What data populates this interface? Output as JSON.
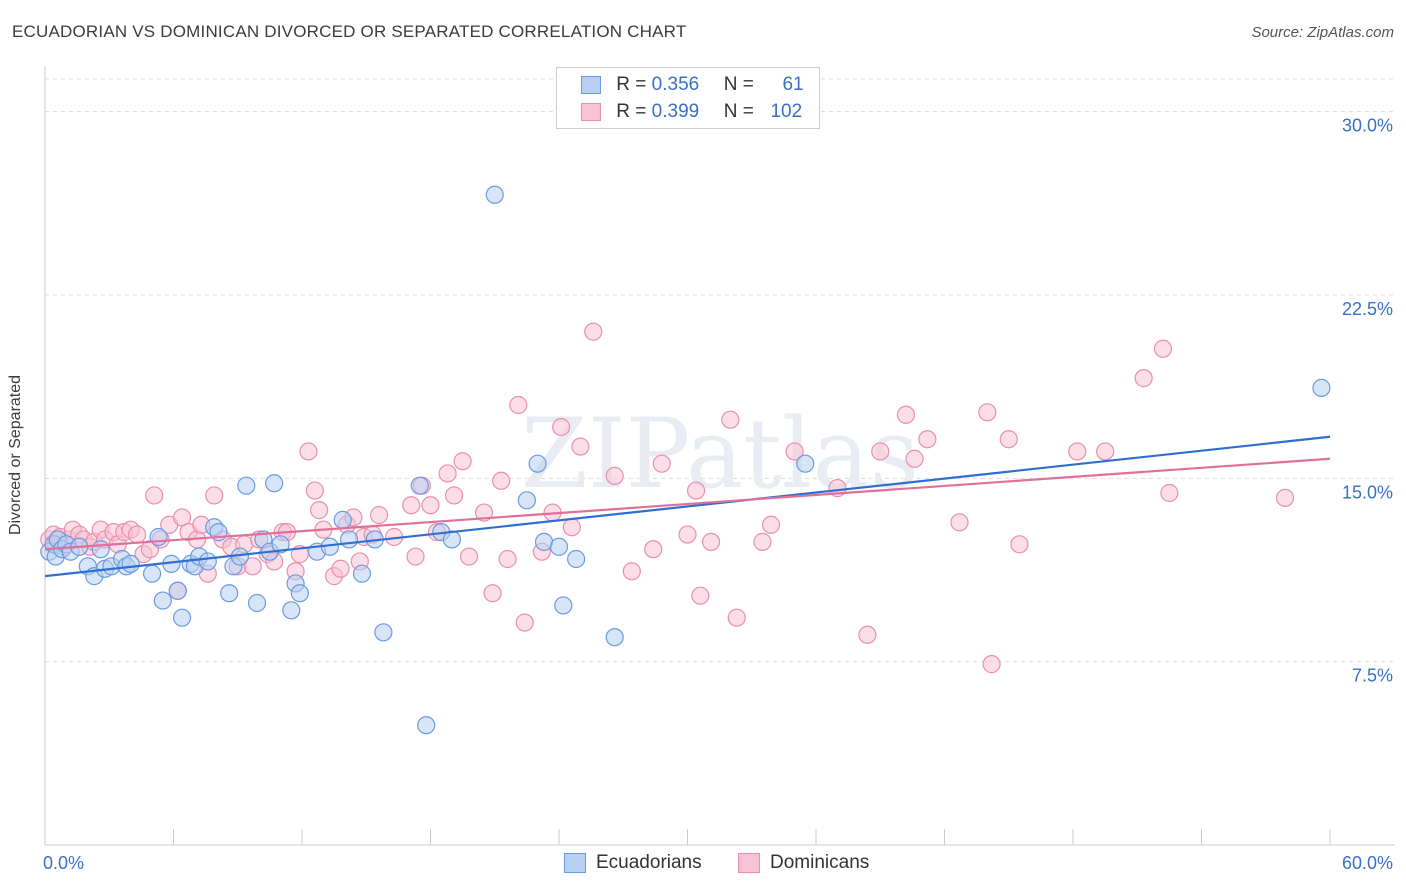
{
  "title": "ECUADORIAN VS DOMINICAN DIVORCED OR SEPARATED CORRELATION CHART",
  "source": "Source: ZipAtlas.com",
  "watermark": "ZIPatlas",
  "legend": {
    "rows": [
      {
        "r_label": "R =",
        "r_value": "0.356",
        "n_label": "N =",
        "n_value": "61"
      },
      {
        "r_label": "R =",
        "r_value": "0.399",
        "n_label": "N =",
        "n_value": "102"
      }
    ]
  },
  "colors": {
    "ecuadorians_fill": "#b8d0f2",
    "ecuadorians_stroke": "#6b9be0",
    "ecuadorians_line": "#2f6fd1",
    "dominicans_fill": "#f7c3d3",
    "dominicans_stroke": "#ea8faf",
    "dominicans_line": "#e0709a",
    "tick_label": "#3a70c6",
    "grid": "#dcdcdc"
  },
  "chart_data": {
    "type": "scatter",
    "title": "ECUADORIAN VS DOMINICAN DIVORCED OR SEPARATED CORRELATION CHART",
    "xlabel": "",
    "ylabel": "Divorced or Separated",
    "xlim": [
      0,
      60
    ],
    "ylim": [
      0,
      31.5
    ],
    "x_tick_labels": [
      {
        "value": 0,
        "label": "0.0%"
      },
      {
        "value": 60,
        "label": "60.0%"
      }
    ],
    "y_ticks": [
      {
        "value": 7.5,
        "label": "7.5%"
      },
      {
        "value": 15,
        "label": "15.0%"
      },
      {
        "value": 22.5,
        "label": "22.5%"
      },
      {
        "value": 30,
        "label": "30.0%"
      }
    ],
    "grid": true,
    "legend_position": "top-center",
    "series": [
      {
        "name": "Ecuadorians",
        "color": "#6b9be0",
        "trend": {
          "x": [
            0,
            60
          ],
          "y": [
            11.0,
            16.7
          ]
        },
        "points": [
          [
            0.2,
            12.0
          ],
          [
            0.4,
            12.3
          ],
          [
            0.5,
            11.8
          ],
          [
            0.6,
            12.5
          ],
          [
            0.8,
            12.1
          ],
          [
            1.0,
            12.3
          ],
          [
            1.2,
            12.0
          ],
          [
            1.6,
            12.2
          ],
          [
            2.0,
            11.4
          ],
          [
            2.3,
            11.0
          ],
          [
            2.6,
            12.1
          ],
          [
            2.8,
            11.3
          ],
          [
            3.1,
            11.4
          ],
          [
            3.6,
            11.7
          ],
          [
            3.8,
            11.4
          ],
          [
            4.0,
            11.5
          ],
          [
            5.0,
            11.1
          ],
          [
            5.3,
            12.6
          ],
          [
            5.5,
            10.0
          ],
          [
            5.9,
            11.5
          ],
          [
            6.2,
            10.4
          ],
          [
            6.4,
            9.3
          ],
          [
            6.8,
            11.5
          ],
          [
            7.0,
            11.4
          ],
          [
            7.2,
            11.8
          ],
          [
            7.6,
            11.6
          ],
          [
            7.9,
            13.0
          ],
          [
            8.1,
            12.8
          ],
          [
            8.6,
            10.3
          ],
          [
            8.8,
            11.4
          ],
          [
            9.1,
            11.8
          ],
          [
            9.4,
            14.7
          ],
          [
            9.9,
            9.9
          ],
          [
            10.2,
            12.5
          ],
          [
            10.5,
            12.0
          ],
          [
            10.7,
            14.8
          ],
          [
            11.0,
            12.3
          ],
          [
            11.5,
            9.6
          ],
          [
            11.7,
            10.7
          ],
          [
            11.9,
            10.3
          ],
          [
            12.7,
            12.0
          ],
          [
            13.3,
            12.2
          ],
          [
            13.9,
            13.3
          ],
          [
            14.2,
            12.5
          ],
          [
            14.8,
            11.1
          ],
          [
            15.4,
            12.5
          ],
          [
            15.8,
            8.7
          ],
          [
            17.5,
            14.7
          ],
          [
            17.8,
            4.9
          ],
          [
            18.5,
            12.8
          ],
          [
            19.0,
            12.5
          ],
          [
            21.0,
            26.6
          ],
          [
            22.5,
            14.1
          ],
          [
            23.0,
            15.6
          ],
          [
            23.3,
            12.4
          ],
          [
            24.0,
            12.2
          ],
          [
            24.2,
            9.8
          ],
          [
            24.8,
            11.7
          ],
          [
            26.6,
            8.5
          ],
          [
            35.5,
            15.6
          ],
          [
            59.6,
            18.7
          ]
        ]
      },
      {
        "name": "Dominicans",
        "color": "#ea8faf",
        "trend": {
          "x": [
            0,
            60
          ],
          "y": [
            12.1,
            15.8
          ]
        },
        "points": [
          [
            0.2,
            12.5
          ],
          [
            0.4,
            12.7
          ],
          [
            0.5,
            12.3
          ],
          [
            0.7,
            12.6
          ],
          [
            0.9,
            12.2
          ],
          [
            1.1,
            12.5
          ],
          [
            1.3,
            12.9
          ],
          [
            1.6,
            12.7
          ],
          [
            1.8,
            12.5
          ],
          [
            2.1,
            12.2
          ],
          [
            2.3,
            12.4
          ],
          [
            2.6,
            12.9
          ],
          [
            2.8,
            12.5
          ],
          [
            3.2,
            12.8
          ],
          [
            3.4,
            12.3
          ],
          [
            3.7,
            12.8
          ],
          [
            4.0,
            12.9
          ],
          [
            4.3,
            12.7
          ],
          [
            4.6,
            11.9
          ],
          [
            4.9,
            12.1
          ],
          [
            5.1,
            14.3
          ],
          [
            5.4,
            12.5
          ],
          [
            5.8,
            13.1
          ],
          [
            6.2,
            10.4
          ],
          [
            6.4,
            13.4
          ],
          [
            6.7,
            12.8
          ],
          [
            7.1,
            12.5
          ],
          [
            7.3,
            13.1
          ],
          [
            7.6,
            11.1
          ],
          [
            7.9,
            14.3
          ],
          [
            8.3,
            12.5
          ],
          [
            8.7,
            12.2
          ],
          [
            9.0,
            11.4
          ],
          [
            9.3,
            12.3
          ],
          [
            9.7,
            11.4
          ],
          [
            10.0,
            12.5
          ],
          [
            10.4,
            11.9
          ],
          [
            10.7,
            11.6
          ],
          [
            11.1,
            12.8
          ],
          [
            11.3,
            12.8
          ],
          [
            11.7,
            11.2
          ],
          [
            11.9,
            11.9
          ],
          [
            12.3,
            16.1
          ],
          [
            12.6,
            14.5
          ],
          [
            12.8,
            13.7
          ],
          [
            13.0,
            12.9
          ],
          [
            13.5,
            11.0
          ],
          [
            13.8,
            11.3
          ],
          [
            14.1,
            13.1
          ],
          [
            14.4,
            13.4
          ],
          [
            14.7,
            11.6
          ],
          [
            14.9,
            12.6
          ],
          [
            15.3,
            12.7
          ],
          [
            15.6,
            13.5
          ],
          [
            16.3,
            12.6
          ],
          [
            17.1,
            13.9
          ],
          [
            17.3,
            11.8
          ],
          [
            17.6,
            14.7
          ],
          [
            18.0,
            13.9
          ],
          [
            18.3,
            12.8
          ],
          [
            18.8,
            15.2
          ],
          [
            19.1,
            14.3
          ],
          [
            19.5,
            15.7
          ],
          [
            19.8,
            11.8
          ],
          [
            20.5,
            13.6
          ],
          [
            20.9,
            10.3
          ],
          [
            21.3,
            14.9
          ],
          [
            21.6,
            11.7
          ],
          [
            22.1,
            18.0
          ],
          [
            22.4,
            9.1
          ],
          [
            23.2,
            12.0
          ],
          [
            23.7,
            13.6
          ],
          [
            24.1,
            17.1
          ],
          [
            24.6,
            13.0
          ],
          [
            25.0,
            16.3
          ],
          [
            25.6,
            21.0
          ],
          [
            26.6,
            15.1
          ],
          [
            27.4,
            11.2
          ],
          [
            28.4,
            12.1
          ],
          [
            28.8,
            15.6
          ],
          [
            30.0,
            12.7
          ],
          [
            30.4,
            14.5
          ],
          [
            30.6,
            10.2
          ],
          [
            31.1,
            12.4
          ],
          [
            32.0,
            17.4
          ],
          [
            32.3,
            9.3
          ],
          [
            33.5,
            12.4
          ],
          [
            33.9,
            13.1
          ],
          [
            35.0,
            16.1
          ],
          [
            37.0,
            14.6
          ],
          [
            38.4,
            8.6
          ],
          [
            39.0,
            16.1
          ],
          [
            40.2,
            17.6
          ],
          [
            40.6,
            15.8
          ],
          [
            41.2,
            16.6
          ],
          [
            42.7,
            13.2
          ],
          [
            44.0,
            17.7
          ],
          [
            44.2,
            7.4
          ],
          [
            45.0,
            16.6
          ],
          [
            45.5,
            12.3
          ],
          [
            48.2,
            16.1
          ],
          [
            49.5,
            16.1
          ],
          [
            51.3,
            19.1
          ],
          [
            52.2,
            20.3
          ],
          [
            52.5,
            14.4
          ],
          [
            57.9,
            14.2
          ]
        ]
      }
    ]
  },
  "bottom_legend": {
    "items": [
      {
        "label": "Ecuadorians"
      },
      {
        "label": "Dominicans"
      }
    ]
  }
}
